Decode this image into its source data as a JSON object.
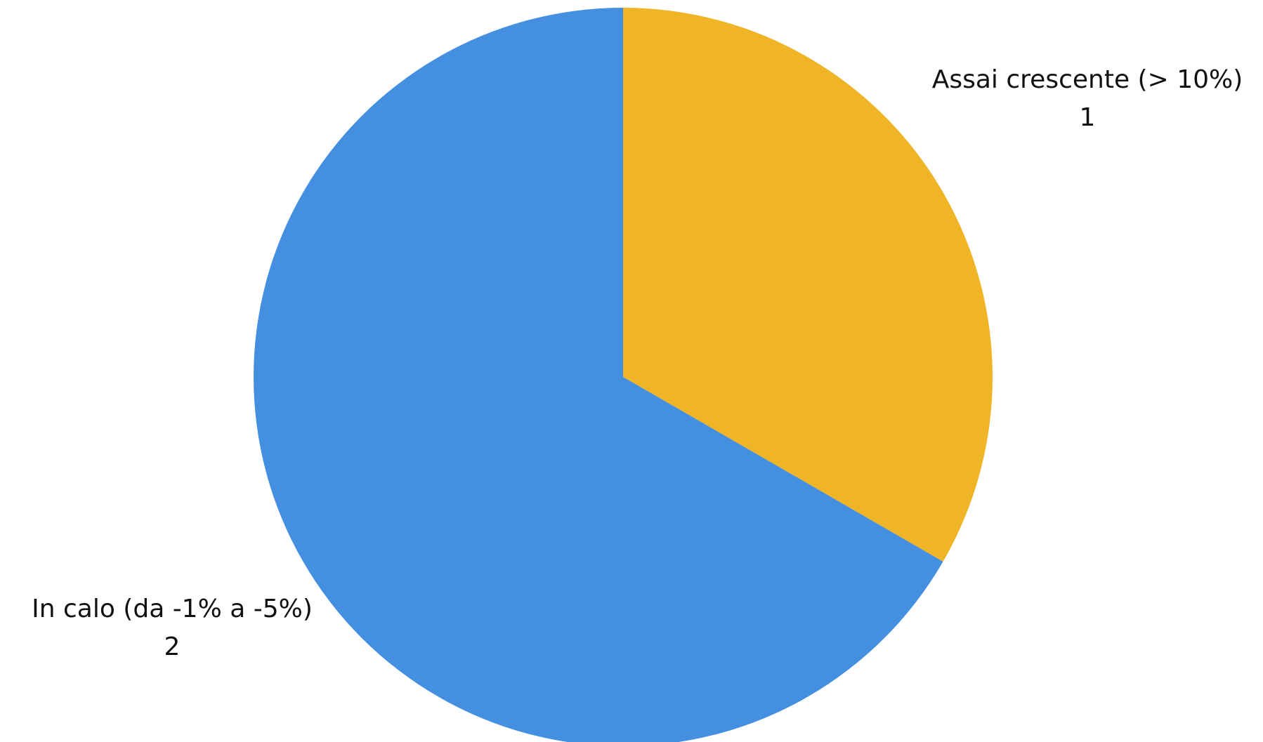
{
  "chart_data": {
    "type": "pie",
    "title": "",
    "slices": [
      {
        "label": "Assai crescente (> 10%)",
        "value": 1,
        "value_label": "1",
        "color": "#F0B427"
      },
      {
        "label": "In calo (da -1% a -5%)",
        "value": 2,
        "value_label": "2",
        "color": "#448FDF"
      }
    ],
    "start_angle_deg": 0,
    "direction": "clockwise",
    "legend": "none"
  }
}
